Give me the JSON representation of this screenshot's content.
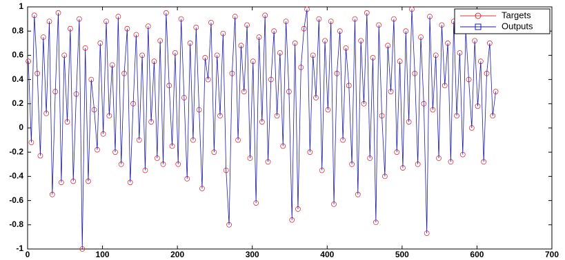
{
  "chart_data": {
    "type": "line",
    "x": [
      1,
      5,
      9,
      13,
      17,
      21,
      25,
      29,
      33,
      37,
      41,
      45,
      49,
      53,
      57,
      61,
      65,
      69,
      73,
      77,
      81,
      85,
      89,
      93,
      97,
      101,
      105,
      109,
      113,
      117,
      121,
      125,
      129,
      133,
      137,
      141,
      145,
      149,
      153,
      157,
      161,
      165,
      169,
      173,
      177,
      181,
      185,
      189,
      193,
      197,
      201,
      205,
      209,
      213,
      217,
      221,
      225,
      229,
      233,
      237,
      241,
      245,
      249,
      253,
      257,
      261,
      265,
      269,
      273,
      277,
      281,
      285,
      289,
      293,
      297,
      301,
      305,
      309,
      313,
      317,
      321,
      325,
      329,
      333,
      337,
      341,
      345,
      349,
      353,
      357,
      361,
      365,
      369,
      373,
      377,
      381,
      385,
      389,
      393,
      397,
      401,
      405,
      409,
      413,
      417,
      421,
      425,
      429,
      433,
      437,
      441,
      445,
      449,
      453,
      457,
      461,
      465,
      469,
      473,
      477,
      481,
      485,
      489,
      493,
      497,
      501,
      505,
      509,
      513,
      517,
      521,
      525,
      529,
      533,
      537,
      541,
      545,
      549,
      553,
      557,
      561,
      565,
      569,
      573,
      577,
      581,
      585,
      589,
      593,
      597,
      601,
      605,
      609,
      613,
      617,
      621,
      625
    ],
    "series": [
      {
        "name": "Targets",
        "color": "#e0303a",
        "marker": "circle",
        "values": [
          0.55,
          -0.12,
          0.93,
          0.45,
          -0.23,
          0.75,
          0.12,
          0.88,
          -0.55,
          0.3,
          0.95,
          -0.45,
          0.6,
          0.05,
          0.82,
          -0.44,
          0.28,
          0.9,
          -1.0,
          0.66,
          -0.44,
          0.4,
          0.15,
          -0.18,
          0.7,
          -0.05,
          0.88,
          0.1,
          0.52,
          -0.2,
          0.92,
          -0.3,
          0.45,
          0.82,
          -0.45,
          0.2,
          0.77,
          -0.1,
          0.6,
          -0.35,
          0.84,
          0.05,
          0.55,
          -0.25,
          0.72,
          -0.3,
          0.95,
          0.35,
          -0.15,
          0.62,
          -0.3,
          0.9,
          0.25,
          -0.42,
          0.7,
          -0.1,
          0.83,
          0.15,
          -0.5,
          0.58,
          0.4,
          0.87,
          -0.2,
          0.6,
          0.1,
          0.78,
          -0.35,
          -0.8,
          0.45,
          0.92,
          -0.1,
          0.68,
          0.3,
          0.85,
          -0.25,
          0.55,
          -0.62,
          0.75,
          0.05,
          0.93,
          -0.28,
          0.4,
          0.8,
          0.1,
          0.62,
          -0.15,
          0.88,
          0.3,
          -0.76,
          0.7,
          -0.67,
          0.5,
          0.82,
          0.98,
          -0.2,
          0.6,
          0.25,
          0.9,
          -0.35,
          0.72,
          0.15,
          0.88,
          -0.63,
          0.45,
          0.8,
          -0.1,
          0.66,
          0.35,
          -0.3,
          0.9,
          -0.55,
          0.72,
          0.2,
          0.95,
          -0.25,
          0.58,
          -0.78,
          0.85,
          0.1,
          -0.4,
          0.68,
          0.3,
          0.9,
          -0.2,
          0.55,
          -0.33,
          0.8,
          0.05,
          0.98,
          0.45,
          -0.3,
          0.75,
          0.2,
          -0.87,
          0.92,
          0.15,
          0.6,
          -0.25,
          0.85,
          0.35,
          0.7,
          -0.28,
          0.88,
          0.1,
          0.62,
          -0.22,
          0.8,
          0.4,
          0.0,
          0.72,
          0.18,
          0.55,
          -0.28,
          0.45,
          0.7,
          0.1,
          0.3
        ]
      },
      {
        "name": "Outputs",
        "color": "#1a1aa8",
        "marker": "square",
        "values": [
          0.55,
          -0.12,
          0.93,
          0.45,
          -0.23,
          0.75,
          0.12,
          0.88,
          -0.55,
          0.3,
          0.95,
          -0.45,
          0.6,
          0.05,
          0.82,
          -0.44,
          0.28,
          0.9,
          -1.0,
          0.66,
          -0.44,
          0.4,
          0.15,
          -0.18,
          0.7,
          -0.05,
          0.88,
          0.1,
          0.52,
          -0.2,
          0.92,
          -0.3,
          0.45,
          0.82,
          -0.45,
          0.2,
          0.77,
          -0.1,
          0.6,
          -0.35,
          0.84,
          0.05,
          0.55,
          -0.25,
          0.72,
          -0.3,
          0.95,
          0.35,
          -0.15,
          0.62,
          -0.3,
          0.9,
          0.25,
          -0.42,
          0.7,
          -0.1,
          0.83,
          0.15,
          -0.5,
          0.58,
          0.4,
          0.87,
          -0.2,
          0.6,
          0.1,
          0.78,
          -0.35,
          -0.8,
          0.45,
          0.92,
          -0.1,
          0.68,
          0.3,
          0.85,
          -0.25,
          0.55,
          -0.62,
          0.75,
          0.05,
          0.93,
          -0.28,
          0.4,
          0.8,
          0.1,
          0.62,
          -0.15,
          0.88,
          0.3,
          -0.76,
          0.7,
          -0.67,
          0.5,
          0.82,
          0.98,
          -0.2,
          0.6,
          0.25,
          0.9,
          -0.35,
          0.72,
          0.15,
          0.88,
          -0.63,
          0.45,
          0.8,
          -0.1,
          0.66,
          0.35,
          -0.3,
          0.9,
          -0.55,
          0.72,
          0.2,
          0.95,
          -0.25,
          0.58,
          -0.78,
          0.85,
          0.1,
          -0.4,
          0.68,
          0.3,
          0.9,
          -0.2,
          0.55,
          -0.33,
          0.8,
          0.05,
          0.98,
          0.45,
          -0.3,
          0.75,
          0.2,
          -0.87,
          0.92,
          0.15,
          0.6,
          -0.25,
          0.85,
          0.35,
          0.7,
          -0.28,
          0.88,
          0.1,
          0.62,
          -0.22,
          0.8,
          0.4,
          0.0,
          0.72,
          0.18,
          0.55,
          -0.28,
          0.45,
          0.7,
          0.1,
          0.3
        ]
      }
    ],
    "xlim": [
      0,
      700
    ],
    "xticks": [
      0,
      100,
      200,
      300,
      400,
      500,
      600,
      700
    ],
    "ylim": [
      -1,
      1
    ],
    "yticks": [
      -1,
      -0.8,
      -0.6,
      -0.4,
      -0.2,
      0,
      0.2,
      0.4,
      0.6,
      0.8,
      1
    ],
    "grid": false,
    "legend": "upper right"
  }
}
